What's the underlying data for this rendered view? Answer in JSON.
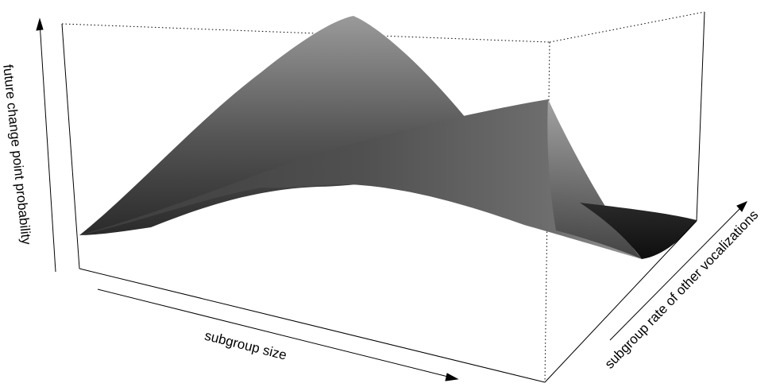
{
  "chart_data": {
    "type": "surface",
    "xlabel": "subgroup size",
    "ylabel": "subgroup rate of other vocalizations",
    "zlabel": "future change point probability",
    "grid": false,
    "legend": "none",
    "shading": "grayscale",
    "x": [
      0,
      0.25,
      0.5,
      0.75,
      1
    ],
    "y": [
      0,
      0.25,
      0.5,
      0.75,
      1
    ],
    "z_rows_by_y": [
      [
        0.05,
        0.5,
        0.93,
        0.58,
        0.1
      ],
      [
        0.14,
        0.42,
        0.6,
        0.38,
        0.1
      ],
      [
        0.2,
        0.3,
        0.32,
        0.24,
        0.06
      ],
      [
        0.22,
        0.3,
        0.4,
        0.42,
        0.05
      ],
      [
        0.2,
        0.32,
        0.45,
        0.7,
        0.02
      ]
    ]
  },
  "colors": {
    "surface_light": "#9a9a9a",
    "surface_dark": "#1a1a1a",
    "box": "#000000"
  }
}
